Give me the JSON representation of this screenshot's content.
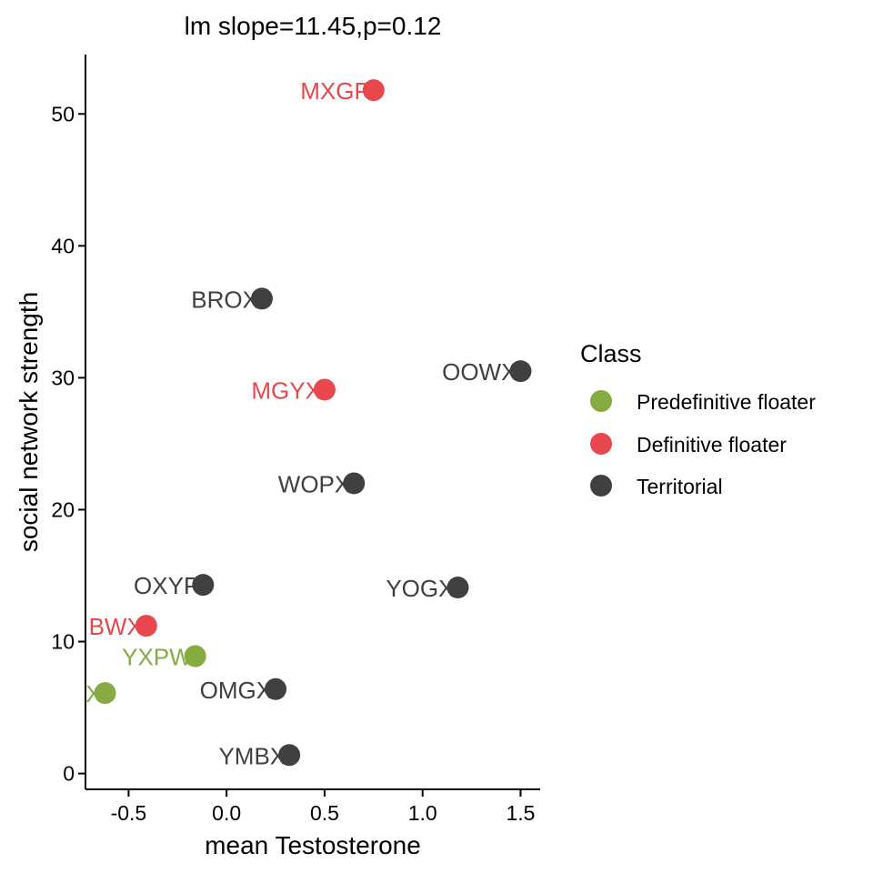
{
  "chart_data": {
    "type": "scatter",
    "title": "lm slope=11.45,p=0.12",
    "xlabel": "mean Testosterone",
    "ylabel": "social network strength",
    "xlim": [
      -0.72,
      1.6
    ],
    "ylim": [
      -1.2,
      54.5
    ],
    "xticks": [
      "-0.5",
      "0.0",
      "0.5",
      "1.0",
      "1.5"
    ],
    "yticks": [
      "0",
      "10",
      "20",
      "30",
      "40",
      "50"
    ],
    "grid": false,
    "legend": {
      "title": "Class",
      "position": "right",
      "entries": [
        {
          "label": "Predefinitive floater",
          "color": "#86AC41"
        },
        {
          "label": "Definitive floater",
          "color": "#E8474D"
        },
        {
          "label": "Territorial",
          "color": "#404040"
        }
      ]
    },
    "points": [
      {
        "label": "MXGP",
        "x": 0.75,
        "y": 51.8,
        "class": "Definitive floater"
      },
      {
        "label": "BROX",
        "x": 0.18,
        "y": 36.0,
        "class": "Territorial"
      },
      {
        "label": "OOWX",
        "x": 1.5,
        "y": 30.5,
        "class": "Territorial"
      },
      {
        "label": "MGYX",
        "x": 0.5,
        "y": 29.1,
        "class": "Definitive floater"
      },
      {
        "label": "WOPX",
        "x": 0.65,
        "y": 22.0,
        "class": "Territorial"
      },
      {
        "label": "OXYP",
        "x": -0.12,
        "y": 14.3,
        "class": "Territorial"
      },
      {
        "label": "YOGX",
        "x": 1.18,
        "y": 14.1,
        "class": "Territorial"
      },
      {
        "label": "BWX",
        "x": -0.41,
        "y": 11.2,
        "class": "Definitive floater"
      },
      {
        "label": "YXPW",
        "x": -0.16,
        "y": 8.9,
        "class": "Predefinitive floater"
      },
      {
        "label": "X",
        "x": -0.62,
        "y": 6.1,
        "class": "Predefinitive floater"
      },
      {
        "label": "OMGX",
        "x": 0.25,
        "y": 6.4,
        "class": "Territorial"
      },
      {
        "label": "YMBX",
        "x": 0.32,
        "y": 1.4,
        "class": "Territorial"
      }
    ]
  }
}
